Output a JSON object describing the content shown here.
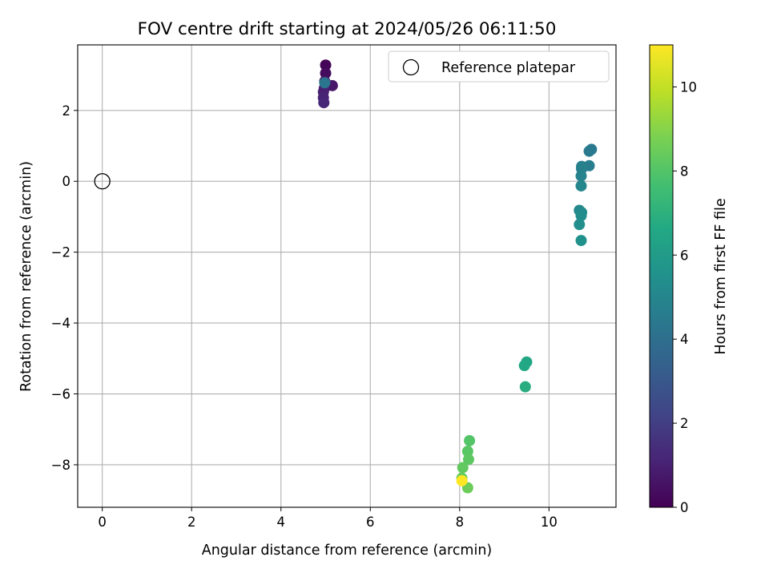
{
  "chart_data": {
    "type": "scatter",
    "title": "FOV centre drift starting at 2024/05/26 06:11:50",
    "xlabel": "Angular distance from reference (arcmin)",
    "ylabel": "Rotation from reference (arcmin)",
    "xlim": [
      -0.55,
      11.5
    ],
    "ylim": [
      -9.2,
      3.85
    ],
    "xticks": [
      0,
      2,
      4,
      6,
      8,
      10
    ],
    "yticks": [
      -8,
      -6,
      -4,
      -2,
      0,
      2
    ],
    "xtick_labels": [
      "0",
      "2",
      "4",
      "6",
      "8",
      "10"
    ],
    "ytick_labels": [
      "−8",
      "−6",
      "−4",
      "−2",
      "0",
      "2"
    ],
    "grid": true,
    "legend": {
      "position": "top-right",
      "entries": [
        "Reference platepar"
      ]
    },
    "reference_point": {
      "name": "Reference platepar",
      "x": 0,
      "y": 0
    },
    "colorbar": {
      "label": "Hours from first FF file",
      "colormap": "viridis",
      "range": [
        0,
        11
      ],
      "ticks": [
        0,
        2,
        4,
        6,
        8,
        10
      ],
      "tick_labels": [
        "0",
        "2",
        "4",
        "6",
        "8",
        "10"
      ]
    },
    "points": [
      {
        "x": 5.0,
        "y": 3.28,
        "hours": 0.1
      },
      {
        "x": 5.0,
        "y": 3.05,
        "hours": 0.3
      },
      {
        "x": 4.98,
        "y": 2.82,
        "hours": 0.5
      },
      {
        "x": 5.15,
        "y": 2.7,
        "hours": 0.7
      },
      {
        "x": 4.97,
        "y": 2.62,
        "hours": 0.9
      },
      {
        "x": 4.95,
        "y": 2.52,
        "hours": 1.0
      },
      {
        "x": 4.95,
        "y": 2.36,
        "hours": 1.1
      },
      {
        "x": 4.96,
        "y": 2.22,
        "hours": 1.2
      },
      {
        "x": 4.98,
        "y": 2.78,
        "hours": 4.3
      },
      {
        "x": 10.95,
        "y": 0.9,
        "hours": 4.4
      },
      {
        "x": 10.9,
        "y": 0.85,
        "hours": 4.5
      },
      {
        "x": 10.9,
        "y": 0.44,
        "hours": 4.6
      },
      {
        "x": 10.73,
        "y": 0.42,
        "hours": 4.7
      },
      {
        "x": 10.73,
        "y": 0.35,
        "hours": 4.8
      },
      {
        "x": 10.72,
        "y": 0.15,
        "hours": 4.9
      },
      {
        "x": 10.72,
        "y": -0.13,
        "hours": 5.0
      },
      {
        "x": 10.68,
        "y": -0.82,
        "hours": 5.1
      },
      {
        "x": 10.73,
        "y": -0.88,
        "hours": 5.2
      },
      {
        "x": 10.72,
        "y": -0.97,
        "hours": 5.3
      },
      {
        "x": 10.68,
        "y": -1.22,
        "hours": 5.4
      },
      {
        "x": 10.72,
        "y": -1.67,
        "hours": 5.5
      },
      {
        "x": 9.5,
        "y": -5.1,
        "hours": 6.5
      },
      {
        "x": 9.45,
        "y": -5.2,
        "hours": 6.6
      },
      {
        "x": 9.47,
        "y": -5.8,
        "hours": 6.8
      },
      {
        "x": 8.22,
        "y": -7.32,
        "hours": 8.0
      },
      {
        "x": 8.18,
        "y": -7.62,
        "hours": 8.1
      },
      {
        "x": 8.2,
        "y": -7.85,
        "hours": 8.2
      },
      {
        "x": 8.07,
        "y": -8.08,
        "hours": 8.3
      },
      {
        "x": 8.05,
        "y": -8.38,
        "hours": 8.4
      },
      {
        "x": 8.18,
        "y": -8.65,
        "hours": 8.5
      },
      {
        "x": 8.05,
        "y": -8.45,
        "hours": 11.0
      }
    ]
  }
}
